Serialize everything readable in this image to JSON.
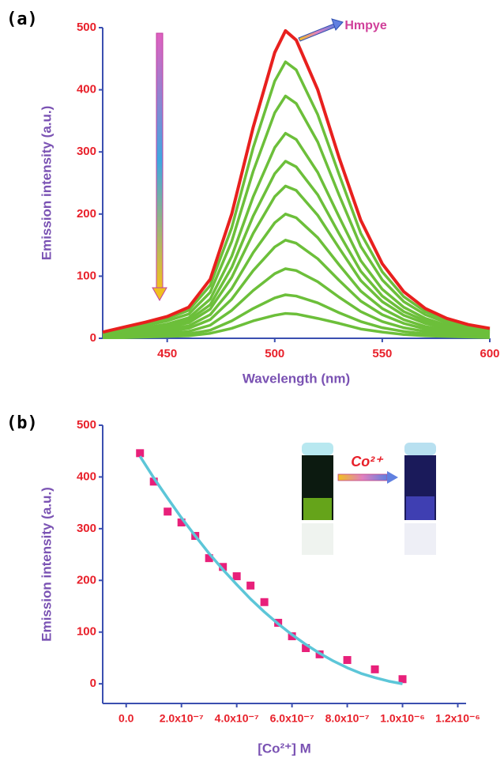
{
  "chart_data": [
    {
      "type": "line",
      "panel_label": "(a)",
      "xlabel": "Wavelength (nm)",
      "ylabel": "Emission intensity (a.u.)",
      "x": [
        420,
        430,
        440,
        450,
        460,
        470,
        480,
        490,
        500,
        505,
        510,
        520,
        530,
        540,
        550,
        560,
        570,
        580,
        590,
        600
      ],
      "xlim": [
        420,
        600
      ],
      "ylim": [
        0,
        500
      ],
      "xticks": [
        450,
        500,
        550,
        600
      ],
      "yticks": [
        0,
        100,
        200,
        300,
        400,
        500
      ],
      "series": [
        {
          "color": "#6cbf3a",
          "values": [
            9,
            16,
            24,
            32,
            45,
            85,
            178,
            307,
            414,
            445,
            432,
            360,
            263,
            169,
            107,
            67,
            43,
            29,
            20,
            14
          ]
        },
        {
          "color": "#6cbf3a",
          "values": [
            8,
            14,
            21,
            28,
            39,
            74,
            156,
            269,
            363,
            390,
            378,
            316,
            230,
            148,
            94,
            59,
            38,
            25,
            17,
            12
          ]
        },
        {
          "color": "#6cbf3a",
          "values": [
            7,
            12,
            17,
            23,
            33,
            63,
            132,
            228,
            307,
            330,
            320,
            267,
            195,
            125,
            79,
            50,
            32,
            21,
            15,
            11
          ]
        },
        {
          "color": "#6cbf3a",
          "values": [
            6,
            10,
            15,
            20,
            29,
            54,
            114,
            197,
            265,
            285,
            276,
            231,
            168,
            108,
            68,
            43,
            28,
            19,
            13,
            9
          ]
        },
        {
          "color": "#6cbf3a",
          "values": [
            5,
            9,
            13,
            17,
            25,
            47,
            98,
            169,
            228,
            245,
            238,
            198,
            145,
            93,
            59,
            37,
            24,
            16,
            11,
            8
          ]
        },
        {
          "color": "#6cbf3a",
          "values": [
            4,
            7,
            11,
            14,
            20,
            38,
            80,
            138,
            186,
            200,
            194,
            162,
            118,
            76,
            48,
            30,
            19,
            13,
            9,
            6
          ]
        },
        {
          "color": "#6cbf3a",
          "values": [
            3,
            6,
            8,
            11,
            16,
            30,
            63,
            109,
            147,
            158,
            153,
            128,
            93,
            60,
            38,
            24,
            15,
            10,
            7,
            5
          ]
        },
        {
          "color": "#6cbf3a",
          "values": [
            2,
            4,
            6,
            8,
            11,
            21,
            45,
            77,
            104,
            112,
            109,
            91,
            66,
            43,
            27,
            17,
            11,
            7,
            5,
            4
          ]
        },
        {
          "color": "#6cbf3a",
          "values": [
            1,
            3,
            4,
            5,
            7,
            13,
            28,
            48,
            65,
            70,
            68,
            57,
            41,
            27,
            17,
            11,
            7,
            5,
            3,
            2
          ]
        },
        {
          "color": "#6cbf3a",
          "values": [
            1,
            1,
            2,
            3,
            4,
            8,
            16,
            28,
            37,
            40,
            39,
            32,
            24,
            15,
            10,
            6,
            4,
            3,
            2,
            1
          ]
        },
        {
          "name": "Hmpye",
          "color": "#e8201e",
          "values": [
            10,
            18,
            26,
            35,
            50,
            95,
            200,
            340,
            460,
            495,
            480,
            400,
            290,
            190,
            120,
            75,
            48,
            32,
            22,
            16
          ]
        }
      ]
    },
    {
      "type": "scatter",
      "panel_label": "(b)",
      "xlabel": "[Co²⁺] M",
      "ylabel": "Emission intensity (a.u.)",
      "annotation": "Co²⁺",
      "xlim": [
        -8.5e-08,
        1.23e-06
      ],
      "ylim": [
        -38,
        500
      ],
      "xticks": [
        {
          "value": 0,
          "label": "0.0"
        },
        {
          "value": 2e-07,
          "label": "2.0x10⁻⁷"
        },
        {
          "value": 4e-07,
          "label": "4.0x10⁻⁷"
        },
        {
          "value": 6e-07,
          "label": "6.0x10⁻⁷"
        },
        {
          "value": 8e-07,
          "label": "8.0x10⁻⁷"
        },
        {
          "value": 1e-06,
          "label": "1.0x10⁻⁶"
        },
        {
          "value": 1.2e-06,
          "label": "1.2x10⁻⁶"
        }
      ],
      "yticks": [
        0,
        100,
        200,
        300,
        400,
        500
      ],
      "series": [
        {
          "type": "scatter",
          "color": "#e8207a",
          "x": [
            5e-08,
            1e-07,
            1.5e-07,
            2e-07,
            2.5e-07,
            3e-07,
            3.5e-07,
            4e-07,
            4.5e-07,
            5e-07,
            5.5e-07,
            6e-07,
            6.5e-07,
            7e-07,
            8e-07,
            9e-07,
            1e-06
          ],
          "values": [
            446,
            391,
            333,
            312,
            286,
            243,
            226,
            208,
            190,
            158,
            118,
            92,
            69,
            57,
            46,
            28,
            9
          ]
        },
        {
          "type": "line",
          "color": "#5cc6d8",
          "x": [
            5e-08,
            1e-07,
            1.5e-07,
            2e-07,
            2.5e-07,
            3e-07,
            3.5e-07,
            4e-07,
            4.5e-07,
            5e-07,
            5.5e-07,
            6e-07,
            6.5e-07,
            7e-07,
            7.5e-07,
            8e-07,
            8.5e-07,
            9e-07,
            9.5e-07,
            1e-06
          ],
          "values": [
            440,
            398,
            359,
            321,
            286,
            252,
            221,
            192,
            164,
            139,
            116,
            95,
            76,
            59,
            44,
            31,
            20,
            12,
            5,
            0
          ]
        }
      ]
    }
  ]
}
